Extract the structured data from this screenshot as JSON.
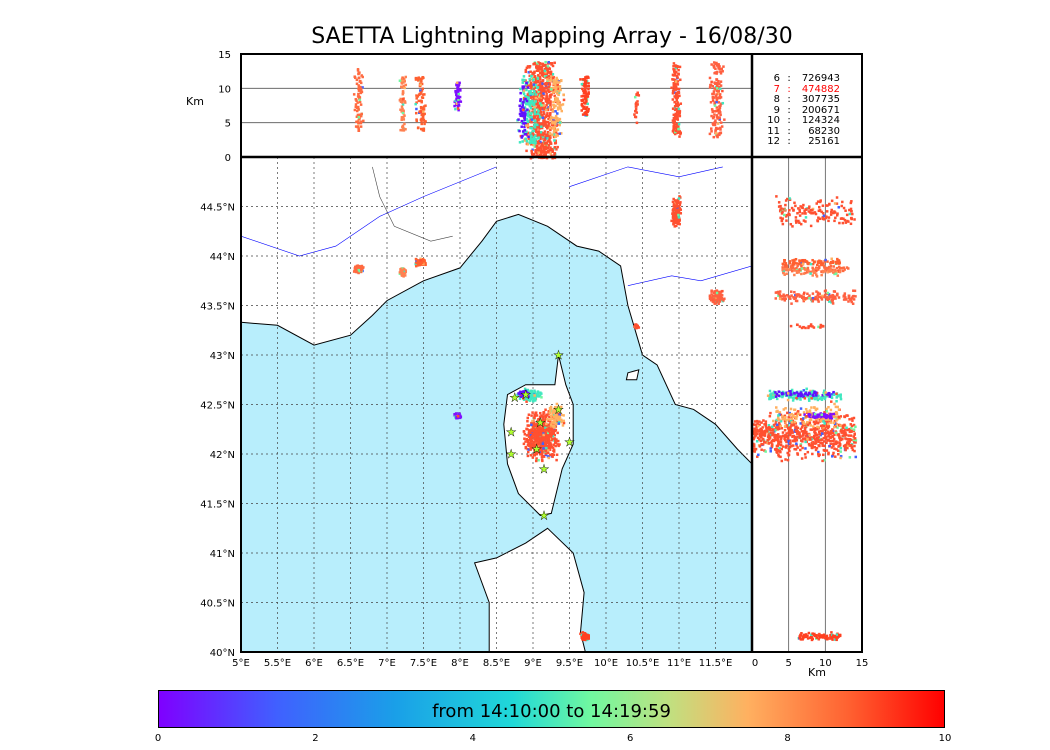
{
  "title": "SAETTA Lightning Mapping Array - 16/08/30",
  "altitude_panel": {
    "ylabel": "Km",
    "yticks": [
      "15",
      "10",
      "5",
      "0"
    ]
  },
  "side_panel": {
    "xlabel": "Km",
    "xticks": [
      "0",
      "5",
      "10",
      "15"
    ]
  },
  "map": {
    "lon_ticks": [
      "5°E",
      "5.5°E",
      "6°E",
      "6.5°E",
      "7°E",
      "7.5°E",
      "8°E",
      "8.5°E",
      "9°E",
      "9.5°E",
      "10°E",
      "10.5°E",
      "11°E",
      "11.5°E"
    ],
    "lat_ticks": [
      "44.5°N",
      "44°N",
      "43.5°N",
      "43°N",
      "42.5°N",
      "42°N",
      "41.5°N",
      "41°N",
      "40.5°N",
      "40°N"
    ],
    "sea_color": "#b8eefc"
  },
  "counts": [
    {
      "label": "6",
      "value": "726943",
      "color": "#000000"
    },
    {
      "label": "7",
      "value": "474882",
      "color": "#ff0000"
    },
    {
      "label": "8",
      "value": "307735",
      "color": "#000000"
    },
    {
      "label": "9",
      "value": "200671",
      "color": "#000000"
    },
    {
      "label": "10",
      "value": "124324",
      "color": "#000000"
    },
    {
      "label": "11",
      "value": "68230",
      "color": "#000000"
    },
    {
      "label": "12",
      "value": "25161",
      "color": "#000000"
    }
  ],
  "colorbar": {
    "label": "from 14:10:00 to 14:19:59",
    "ticks": [
      "0",
      "2",
      "4",
      "6",
      "8",
      "10"
    ]
  },
  "chart_data": {
    "type": "scatter",
    "title": "SAETTA Lightning Mapping Array - 16/08/30",
    "lon_range": [
      5,
      12
    ],
    "lat_range": [
      40,
      45
    ],
    "alt_range_km": [
      0,
      15
    ],
    "time_range_min": [
      0,
      10
    ],
    "cells": [
      {
        "lon": 9.1,
        "lat": 42.2,
        "dlon": 0.28,
        "dlat": 0.3,
        "alt": [
          0,
          14
        ],
        "color": "#ff5030",
        "n": 700
      },
      {
        "lon": 8.95,
        "lat": 42.6,
        "dlon": 0.2,
        "dlat": 0.08,
        "alt": [
          2,
          12
        ],
        "color": "#40e8c0",
        "n": 150
      },
      {
        "lon": 8.85,
        "lat": 42.62,
        "dlon": 0.1,
        "dlat": 0.05,
        "alt": [
          3,
          11
        ],
        "color": "#6010ff",
        "n": 60
      },
      {
        "lon": 9.3,
        "lat": 42.4,
        "dlon": 0.15,
        "dlat": 0.15,
        "alt": [
          3,
          12
        ],
        "color": "#ffb060",
        "n": 120
      },
      {
        "lon": 7.95,
        "lat": 42.4,
        "dlon": 0.05,
        "dlat": 0.04,
        "alt": [
          7,
          11
        ],
        "color": "#8010ff",
        "n": 60
      },
      {
        "lon": 6.6,
        "lat": 43.88,
        "dlon": 0.08,
        "dlat": 0.05,
        "alt": [
          4,
          13
        ],
        "color": "#ff6a40",
        "n": 80
      },
      {
        "lon": 7.2,
        "lat": 43.85,
        "dlon": 0.07,
        "dlat": 0.06,
        "alt": [
          4,
          12
        ],
        "color": "#ff8050",
        "n": 60
      },
      {
        "lon": 7.45,
        "lat": 43.95,
        "dlon": 0.1,
        "dlat": 0.05,
        "alt": [
          4,
          12
        ],
        "color": "#ff6030",
        "n": 80
      },
      {
        "lon": 10.95,
        "lat": 44.45,
        "dlon": 0.08,
        "dlat": 0.2,
        "alt": [
          3,
          14
        ],
        "color": "#ff5030",
        "n": 150
      },
      {
        "lon": 11.5,
        "lat": 43.6,
        "dlon": 0.12,
        "dlat": 0.1,
        "alt": [
          3,
          14
        ],
        "color": "#ff6040",
        "n": 150
      },
      {
        "lon": 10.4,
        "lat": 43.3,
        "dlon": 0.04,
        "dlat": 0.03,
        "alt": [
          5,
          10
        ],
        "color": "#ff5030",
        "n": 20
      },
      {
        "lon": 9.7,
        "lat": 40.17,
        "dlon": 0.08,
        "dlat": 0.05,
        "alt": [
          6,
          12
        ],
        "color": "#ff4020",
        "n": 80
      }
    ]
  }
}
